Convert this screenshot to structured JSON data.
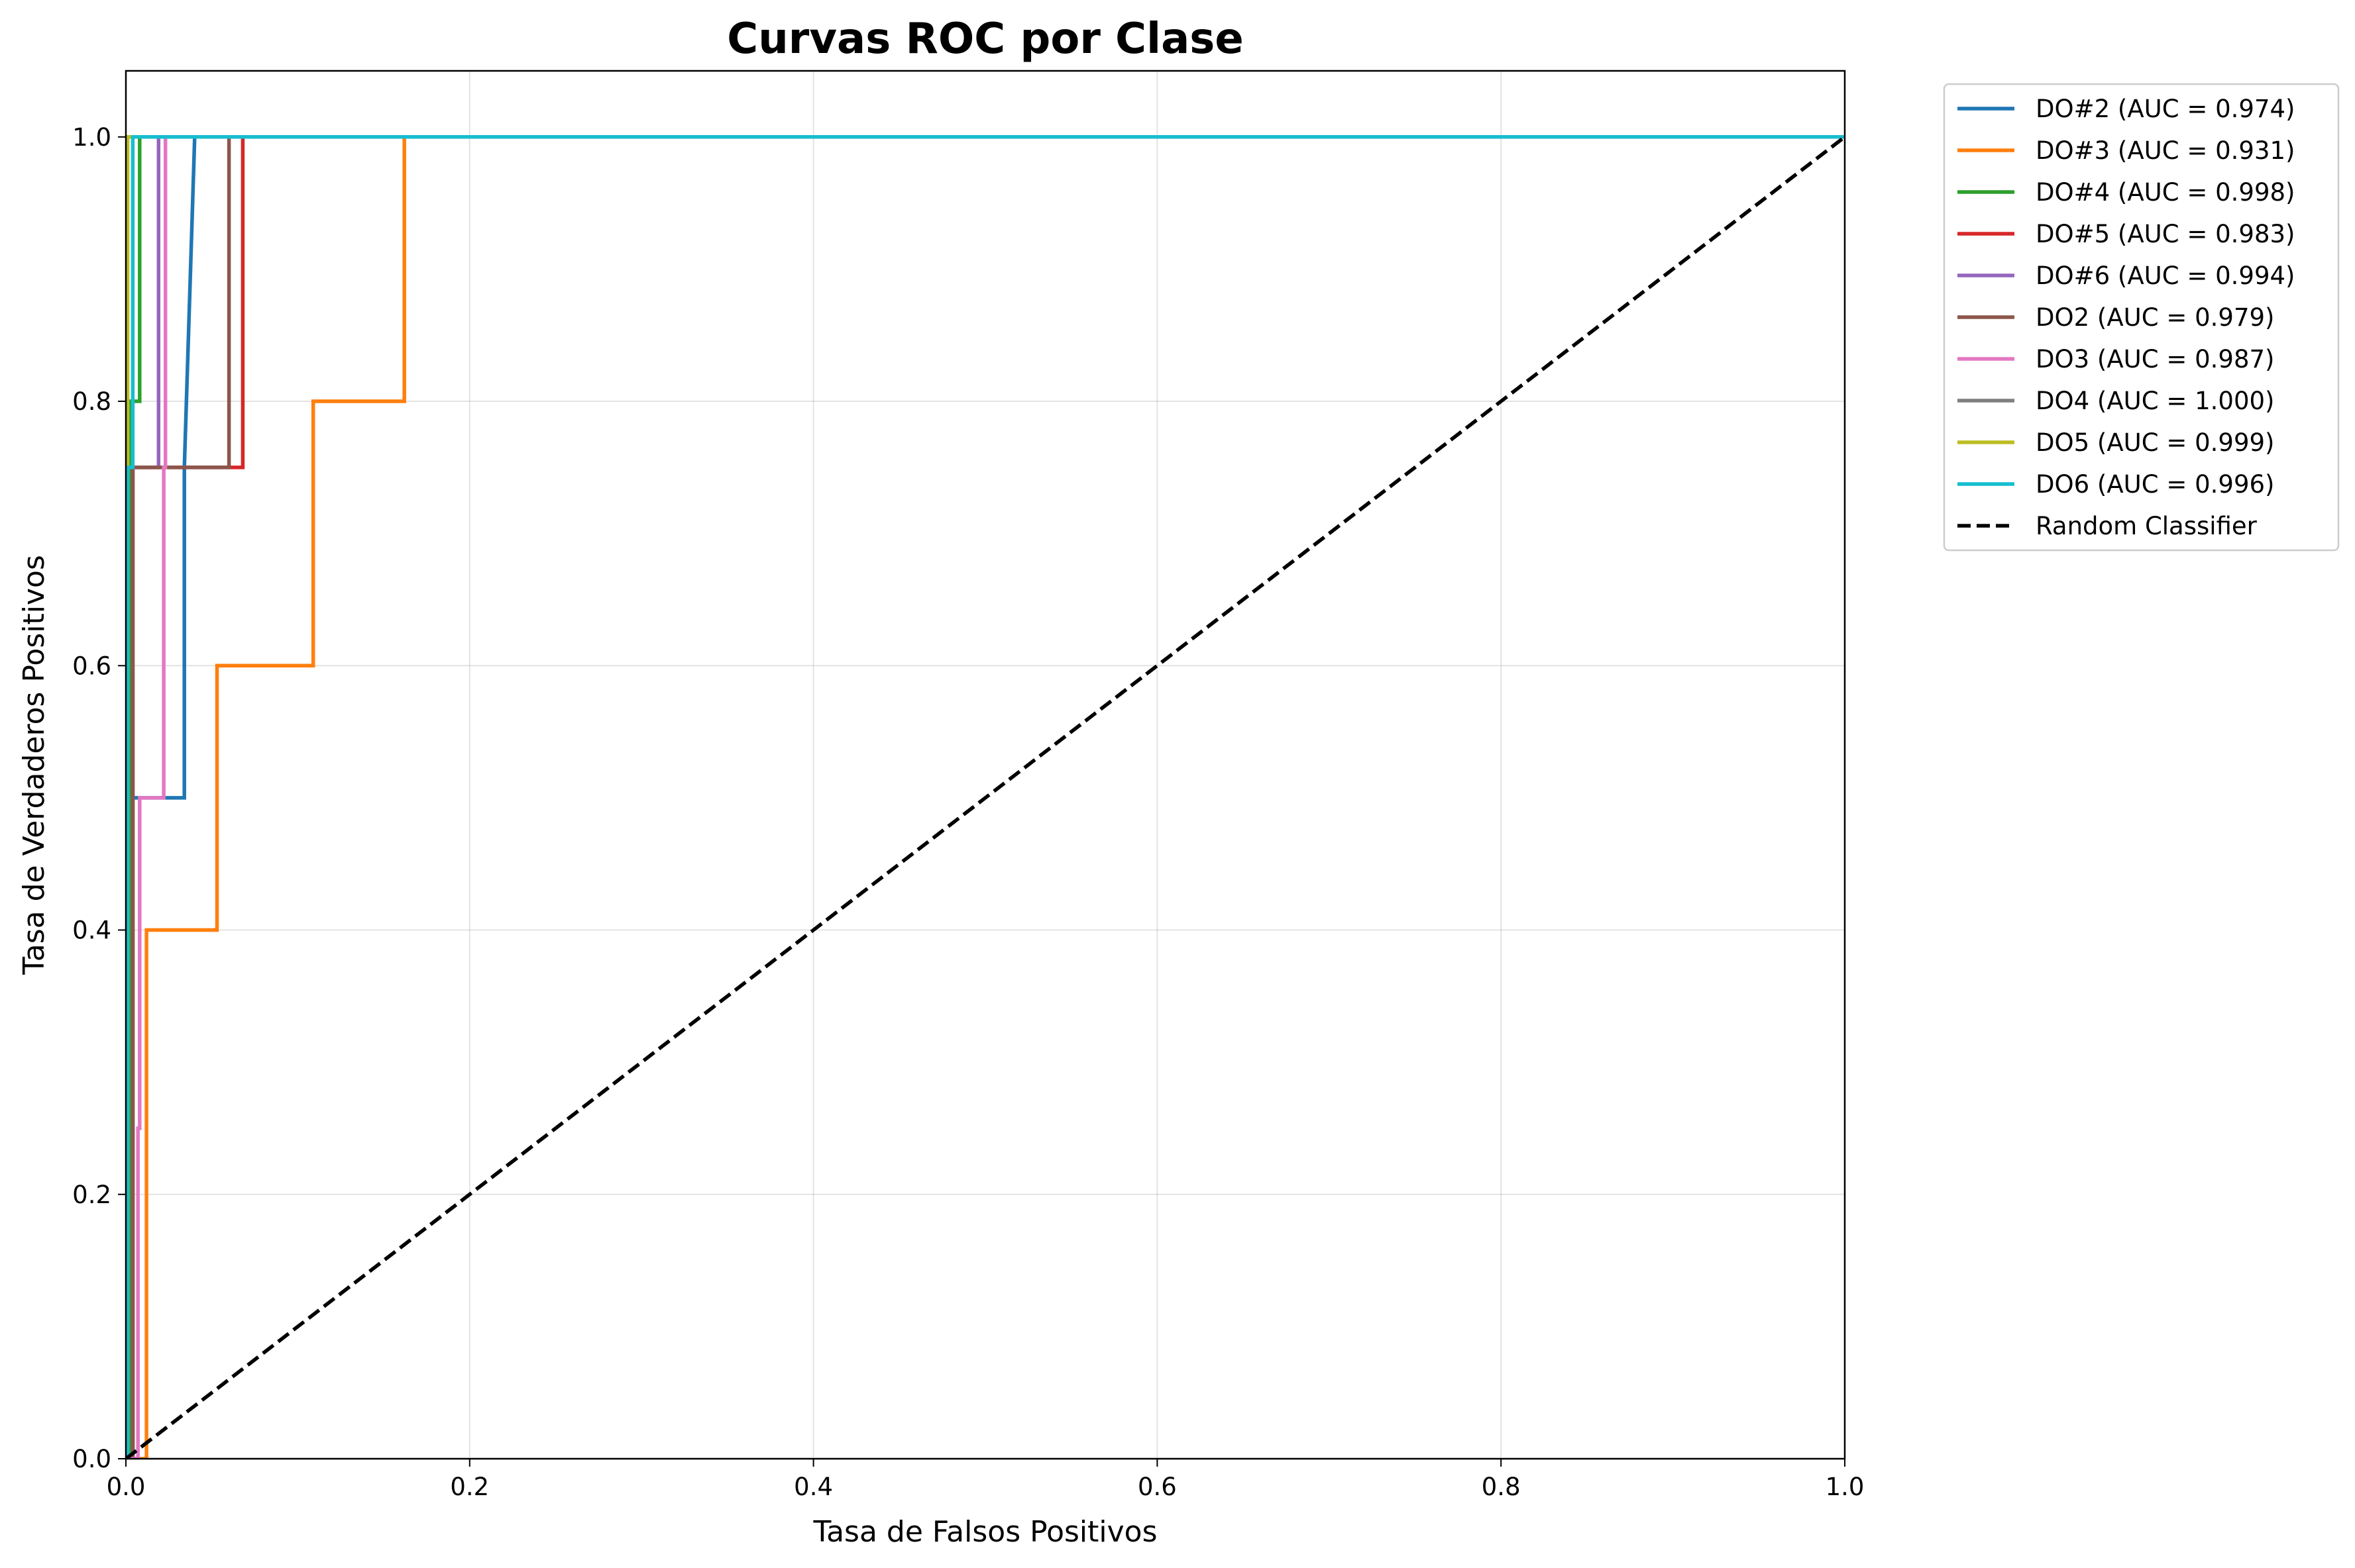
{
  "chart_data": {
    "type": "line",
    "title": "Curvas ROC por Clase",
    "xlabel": "Tasa de Falsos Positivos",
    "ylabel": "Tasa de Verdaderos Positivos",
    "xlim": [
      0,
      1
    ],
    "ylim": [
      0,
      1.05
    ],
    "xticks": [
      "0.0",
      "0.2",
      "0.4",
      "0.6",
      "0.8",
      "1.0"
    ],
    "yticks": [
      "0.0",
      "0.2",
      "0.4",
      "0.6",
      "0.8",
      "1.0"
    ],
    "grid": true,
    "legend_position": "outside-top-right",
    "series": [
      {
        "name": "DO#2 (AUC = 0.974)",
        "color": "#1f77b4",
        "x": [
          0,
          0.004,
          0.004,
          0.034,
          0.034,
          0.04,
          1.0
        ],
        "y": [
          0,
          0,
          0.5,
          0.5,
          0.75,
          1.0,
          1.0
        ]
      },
      {
        "name": "DO#3 (AUC = 0.931)",
        "color": "#ff7f0e",
        "x": [
          0,
          0.012,
          0.012,
          0.053,
          0.053,
          0.109,
          0.109,
          0.162,
          0.162,
          1.0
        ],
        "y": [
          0,
          0,
          0.4,
          0.4,
          0.6,
          0.6,
          0.8,
          0.8,
          1.0,
          1.0
        ]
      },
      {
        "name": "DO#4 (AUC = 0.998)",
        "color": "#2ca02c",
        "x": [
          0,
          0.003,
          0.003,
          0.008,
          0.008,
          1.0
        ],
        "y": [
          0,
          0,
          0.8,
          0.8,
          1.0,
          1.0
        ]
      },
      {
        "name": "DO#5 (AUC = 0.983)",
        "color": "#d62728",
        "x": [
          0,
          0.004,
          0.004,
          0.068,
          0.068,
          1.0
        ],
        "y": [
          0,
          0,
          0.75,
          0.75,
          1.0,
          1.0
        ]
      },
      {
        "name": "DO#6 (AUC = 0.994)",
        "color": "#9467bd",
        "x": [
          0,
          0.004,
          0.004,
          0.019,
          0.019,
          1.0
        ],
        "y": [
          0,
          0,
          0.75,
          0.75,
          1.0,
          1.0
        ]
      },
      {
        "name": "DO2 (AUC = 0.979)",
        "color": "#8c564b",
        "x": [
          0,
          0.004,
          0.004,
          0.06,
          0.06,
          1.0
        ],
        "y": [
          0,
          0,
          0.75,
          0.75,
          1.0,
          1.0
        ]
      },
      {
        "name": "DO3 (AUC = 0.987)",
        "color": "#e377c2",
        "x": [
          0,
          0.007,
          0.007,
          0.008,
          0.008,
          0.022,
          0.022,
          0.023,
          0.023,
          1.0
        ],
        "y": [
          0,
          0,
          0.25,
          0.25,
          0.5,
          0.5,
          0.75,
          0.75,
          1.0,
          1.0
        ]
      },
      {
        "name": "DO4 (AUC = 1.000)",
        "color": "#7f7f7f",
        "x": [
          0,
          0,
          1.0
        ],
        "y": [
          0,
          1.0,
          1.0
        ]
      },
      {
        "name": "DO5 (AUC = 0.999)",
        "color": "#bcbd22",
        "x": [
          0,
          0.001,
          0.001,
          1.0
        ],
        "y": [
          0,
          0,
          1.0,
          1.0
        ]
      },
      {
        "name": "DO6 (AUC = 0.996)",
        "color": "#17becf",
        "x": [
          0,
          0.001,
          0.001,
          0.004,
          0.004,
          1.0
        ],
        "y": [
          0,
          0,
          0.75,
          0.75,
          1.0,
          1.0
        ]
      }
    ],
    "reference_line": {
      "name": "Random Classifier",
      "color": "#000000",
      "x": [
        0,
        1
      ],
      "y": [
        0,
        1
      ]
    }
  }
}
